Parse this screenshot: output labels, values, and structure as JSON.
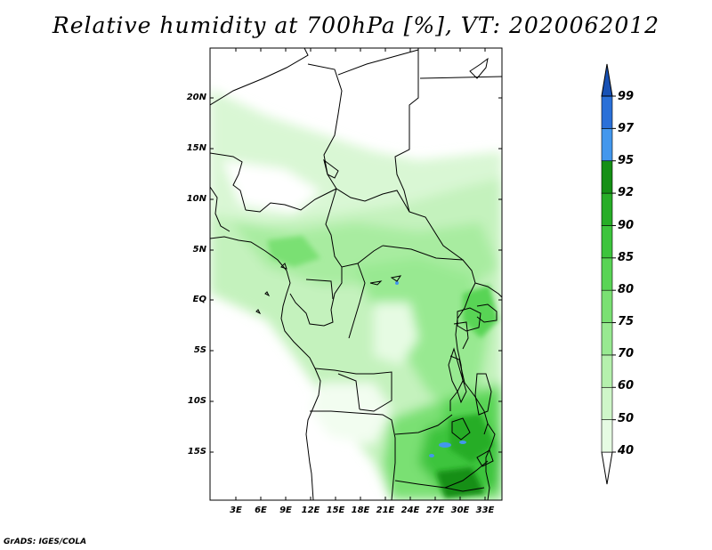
{
  "title": "Relative humidity at 700hPa [%], VT: 2020062012",
  "credit": "GrADS: IGES/COLA",
  "map": {
    "lat_labels": [
      "20N",
      "15N",
      "10N",
      "5N",
      "EQ",
      "5S",
      "10S",
      "15S"
    ],
    "lon_labels": [
      "3E",
      "6E",
      "9E",
      "12E",
      "15E",
      "18E",
      "21E",
      "24E",
      "27E",
      "30E",
      "33E"
    ]
  },
  "colorbar": {
    "levels": [
      "40",
      "50",
      "60",
      "70",
      "75",
      "80",
      "85",
      "90",
      "92",
      "95",
      "97",
      "99"
    ],
    "colors": [
      "#ffffff",
      "#e6fbe3",
      "#cff6c9",
      "#b5f0ad",
      "#98e991",
      "#7ae073",
      "#59d455",
      "#3dc43d",
      "#27ad27",
      "#158f15",
      "#4397ed",
      "#2a70d8",
      "#1751b5"
    ]
  }
}
